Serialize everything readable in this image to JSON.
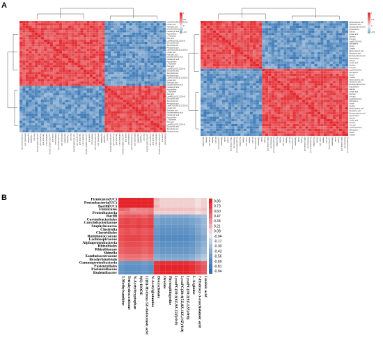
{
  "panels": {
    "a": "A",
    "b": "B"
  },
  "colors": {
    "low": "#2b6fb3",
    "mid": "#f4f4f4",
    "high": "#e4242a"
  },
  "chart_data": [
    {
      "type": "heatmap",
      "title": "",
      "note": "Clustered correlation matrix (left). Row/column labels are too small to read legibly.",
      "size": 48,
      "legend_ticks": [
        "1",
        "0.5",
        "0",
        "-0.5"
      ],
      "partial_labels": [
        "LysoPC(18:3(6Z,9Z,12Z)/0:0)",
        "Linoleic acid",
        "Palmitoleic acid",
        "Docosahexaenoic acid",
        "Indoleacrylic acid",
        "Hypoxanthine",
        "L-Tryptophan",
        "Oleic acid",
        "LysoPE(18:2(9Z,12Z)/0:0)",
        "Deoxycholic acid",
        "Taurocholic acid",
        "Arachidonic acid"
      ]
    },
    {
      "type": "heatmap",
      "title": "",
      "note": "Clustered correlation matrix (right). Row/column labels are too small to read legibly.",
      "size": 48,
      "legend_ticks": [
        "1",
        "0.5",
        "0",
        "-0.5"
      ],
      "partial_labels": [
        "Alpha-Linolenic acid",
        "Stearidonic acid",
        "Eicosapentaenoic acid",
        "Hypoxanthine",
        "Adenine",
        "Linoleic acid",
        "Xanthine",
        "Uric acid",
        "LysoPC(16:0/0:0)",
        "Sphinganine",
        "Inosine",
        "Creatine"
      ]
    },
    {
      "type": "heatmap",
      "title": "",
      "rows": [
        "Firmicutes(UC)",
        "Proteobacteria(UC)",
        "Bacilli(UC)",
        "Firmicutes",
        "Proteobacteria",
        "Bacilli",
        "Corynebacteriales",
        "Corynebacteriaceae",
        "Staphylococcus",
        "Clostridia",
        "Clostridiales",
        "Ruminococcaceae",
        "Lachnospiraceae",
        "Alphaproteobacteria",
        "Rhizobiales",
        "Rhizobiaceae",
        "Shinella",
        "Xanthobacteraceae",
        "Bradyrhizobium",
        "Gammaproteobacteria",
        "Pasteurellales",
        "Pasteurellaceae",
        "Rodentibacter"
      ],
      "columns": [
        "3-Methylxanthine",
        "Tetrahydrocortisone",
        "N-Acetyltryptophan",
        "9(S)-HODE",
        "12-Hydroxy-5Z-dodecenoic acid",
        "N-Acetylglutamine",
        "Deoxycholate",
        "Orotate",
        "Phytosphingosine",
        "LysoPC(18:3(6Z,9Z,12Z)/0:0)",
        "LysoPC(20:4(5Z,8Z,11Z,14Z)/0:0)",
        "LysoPC(18:2(9Z,12Z)/0:0)",
        "L-Arginine",
        "7-Hydroxy-3-oxocholanoic acid",
        "Linoleic acid"
      ],
      "column_labels_shown": [
        "3-Methylxanthine",
        "Tetrahydrocortisone",
        "N-Acetyltryptophan",
        "9(S)-HODE",
        "12(R)-Hydroxy-5Z-dodecenoic acid",
        "N-Acetylglutamine",
        "Deoxycholate",
        "Orotate",
        "Phytosphingosine",
        "LysoPC(18:3(6Z,9Z,12Z)/0:0)",
        "LysoPC(20:4(5Z,8Z,11Z,14Z)/0:0)",
        "LysoPC(18:2(9Z,12Z)/0:0)",
        "L-Arginine",
        "7-Hydroxy-3-oxocholanoic acid",
        "Linoleic acid"
      ],
      "legend_ticks": [
        "0.86",
        "0.73",
        "0.60",
        "0.47",
        "0.34",
        "0.21",
        "0.08",
        "-0.04",
        "-0.17",
        "-0.30",
        "-0.43",
        "-0.56",
        "-0.69",
        "-0.81",
        "-0.94"
      ],
      "range": [
        -0.94,
        0.86
      ],
      "values": [
        [
          0.86,
          0.86,
          0.86,
          0.86,
          0.86,
          0.86,
          0.2,
          0.1,
          0.1,
          0.1,
          0.1,
          0.1,
          0.1,
          0.05,
          0.1
        ],
        [
          0.86,
          0.86,
          0.86,
          0.86,
          0.86,
          0.86,
          0.15,
          0.1,
          0.1,
          0.1,
          0.1,
          0.1,
          0.1,
          0.05,
          0.1
        ],
        [
          0.86,
          0.86,
          0.86,
          0.86,
          0.86,
          0.86,
          0.2,
          0.1,
          0.1,
          0.1,
          0.1,
          0.1,
          0.1,
          0.05,
          0.1
        ],
        [
          0.55,
          0.5,
          0.35,
          0.4,
          0.4,
          0.45,
          0.15,
          0.15,
          0.15,
          0.15,
          0.15,
          0.15,
          0.15,
          0.1,
          0.15
        ],
        [
          0.4,
          0.45,
          0.4,
          0.4,
          0.4,
          0.45,
          0.1,
          0.1,
          0.1,
          0.1,
          0.1,
          0.1,
          0.1,
          0.05,
          0.1
        ],
        [
          0.55,
          0.6,
          0.6,
          0.6,
          0.55,
          0.65,
          -0.4,
          -0.45,
          -0.45,
          -0.45,
          -0.45,
          -0.45,
          -0.4,
          -0.35,
          -0.3
        ],
        [
          0.65,
          0.7,
          0.65,
          0.7,
          0.65,
          0.7,
          -0.5,
          -0.55,
          -0.55,
          -0.55,
          -0.55,
          -0.55,
          -0.5,
          -0.45,
          -0.35
        ],
        [
          0.65,
          0.7,
          0.65,
          0.7,
          0.65,
          0.7,
          -0.5,
          -0.55,
          -0.55,
          -0.55,
          -0.55,
          -0.55,
          -0.5,
          -0.45,
          -0.35
        ],
        [
          0.7,
          0.72,
          0.7,
          0.75,
          0.7,
          0.75,
          -0.55,
          -0.6,
          -0.6,
          -0.6,
          -0.6,
          -0.6,
          -0.55,
          -0.45,
          -0.35
        ],
        [
          0.6,
          0.65,
          0.6,
          0.65,
          0.6,
          0.65,
          -0.6,
          -0.65,
          -0.65,
          -0.65,
          -0.65,
          -0.65,
          -0.6,
          -0.5,
          -0.4
        ],
        [
          0.6,
          0.65,
          0.6,
          0.65,
          0.6,
          0.65,
          -0.6,
          -0.65,
          -0.65,
          -0.65,
          -0.65,
          -0.65,
          -0.6,
          -0.5,
          -0.4
        ],
        [
          0.65,
          0.7,
          0.7,
          0.7,
          0.65,
          0.7,
          -0.65,
          -0.7,
          -0.7,
          -0.7,
          -0.7,
          -0.7,
          -0.65,
          -0.55,
          -0.45
        ],
        [
          0.65,
          0.7,
          0.7,
          0.7,
          0.65,
          0.7,
          -0.65,
          -0.7,
          -0.7,
          -0.7,
          -0.7,
          -0.7,
          -0.65,
          -0.55,
          -0.45
        ],
        [
          0.6,
          0.65,
          0.65,
          0.65,
          0.6,
          0.65,
          -0.6,
          -0.65,
          -0.65,
          -0.65,
          -0.65,
          -0.65,
          -0.6,
          -0.5,
          -0.4
        ],
        [
          0.6,
          0.65,
          0.65,
          0.65,
          0.6,
          0.65,
          -0.6,
          -0.65,
          -0.65,
          -0.65,
          -0.65,
          -0.65,
          -0.6,
          -0.5,
          -0.4
        ],
        [
          0.55,
          0.6,
          0.6,
          0.6,
          0.55,
          0.6,
          -0.55,
          -0.6,
          -0.6,
          -0.6,
          -0.6,
          -0.6,
          -0.55,
          -0.45,
          -0.35
        ],
        [
          0.55,
          0.6,
          0.6,
          0.6,
          0.55,
          0.6,
          -0.55,
          -0.6,
          -0.6,
          -0.6,
          -0.6,
          -0.6,
          -0.55,
          -0.45,
          -0.35
        ],
        [
          0.45,
          0.5,
          0.5,
          0.5,
          0.45,
          0.5,
          -0.45,
          -0.5,
          -0.5,
          -0.5,
          -0.5,
          -0.5,
          -0.45,
          -0.35,
          -0.25
        ],
        [
          0.4,
          0.45,
          0.45,
          0.45,
          0.4,
          0.45,
          -0.4,
          -0.45,
          -0.45,
          -0.45,
          -0.45,
          -0.45,
          -0.4,
          -0.3,
          -0.2
        ],
        [
          -0.55,
          -0.6,
          -0.6,
          -0.6,
          -0.55,
          -0.6,
          0.75,
          0.8,
          0.8,
          0.8,
          0.8,
          0.8,
          0.75,
          0.65,
          0.55
        ],
        [
          -0.6,
          -0.65,
          -0.65,
          -0.65,
          -0.6,
          -0.65,
          0.8,
          0.86,
          0.86,
          0.86,
          0.86,
          0.86,
          0.8,
          0.7,
          0.6
        ],
        [
          -0.6,
          -0.65,
          -0.65,
          -0.65,
          -0.6,
          -0.65,
          0.8,
          0.86,
          0.86,
          0.86,
          0.86,
          0.86,
          0.8,
          0.7,
          0.6
        ],
        [
          -0.6,
          -0.65,
          -0.65,
          -0.65,
          -0.6,
          -0.65,
          0.8,
          0.86,
          0.86,
          0.86,
          0.86,
          0.86,
          0.8,
          0.7,
          0.6
        ]
      ]
    }
  ]
}
